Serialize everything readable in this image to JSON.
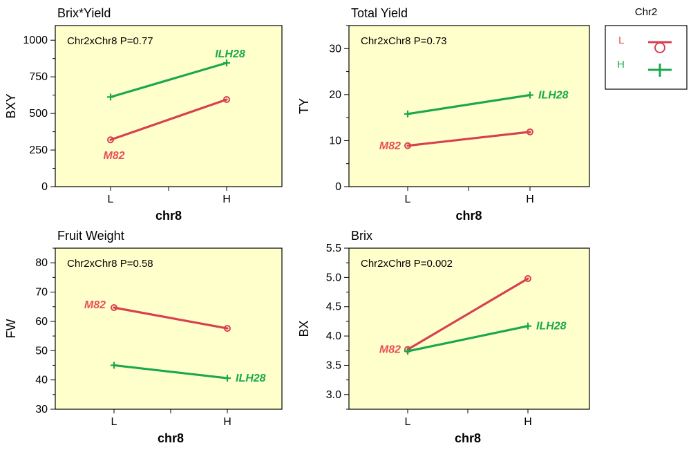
{
  "chart_data": [
    {
      "type": "line",
      "title": "Brix*Yield",
      "ylabel": "BXY",
      "xlabel": "chr8",
      "categories": [
        "L",
        "H"
      ],
      "ylim": [
        0,
        1100
      ],
      "yticks": [
        0,
        250,
        500,
        750,
        1000
      ],
      "annotation": "Chr2xChr8 P=0.77",
      "series": [
        {
          "name": "L",
          "values": [
            320,
            595
          ],
          "label": "M82",
          "label_at": 0
        },
        {
          "name": "H",
          "values": [
            612,
            845
          ],
          "label": "ILH28",
          "label_at": 1
        }
      ]
    },
    {
      "type": "line",
      "title": "Total Yield",
      "ylabel": "TY",
      "xlabel": "chr8",
      "categories": [
        "L",
        "H"
      ],
      "ylim": [
        0,
        35
      ],
      "yticks": [
        0,
        10,
        20,
        30
      ],
      "annotation": "Chr2xChr8 P=0.73",
      "series": [
        {
          "name": "L",
          "values": [
            8.9,
            11.9
          ],
          "label": "M82",
          "label_at": 0
        },
        {
          "name": "H",
          "values": [
            15.8,
            19.9
          ],
          "label": "ILH28",
          "label_at": 1
        }
      ]
    },
    {
      "type": "line",
      "title": "Fruit Weight",
      "ylabel": "FW",
      "xlabel": "chr8",
      "categories": [
        "L",
        "H"
      ],
      "ylim": [
        30,
        85
      ],
      "yticks": [
        30,
        40,
        50,
        60,
        70,
        80
      ],
      "annotation": "Chr2xChr8 P=0.58",
      "series": [
        {
          "name": "L",
          "values": [
            64.7,
            57.6
          ],
          "label": "M82",
          "label_at": 0
        },
        {
          "name": "H",
          "values": [
            45.0,
            40.6
          ],
          "label": "ILH28",
          "label_at": 1
        }
      ]
    },
    {
      "type": "line",
      "title": "Brix",
      "ylabel": "BX",
      "xlabel": "chr8",
      "categories": [
        "L",
        "H"
      ],
      "ylim": [
        2.75,
        5.5
      ],
      "yticks": [
        3.0,
        3.5,
        4.0,
        4.5,
        5.0,
        5.5
      ],
      "annotation": "Chr2xChr8 P=0.002",
      "series": [
        {
          "name": "L",
          "values": [
            3.77,
            4.98
          ],
          "label": "M82",
          "label_at": 0
        },
        {
          "name": "H",
          "values": [
            3.74,
            4.17
          ],
          "label": "ILH28",
          "label_at": 1
        }
      ]
    }
  ],
  "legend": {
    "title": "Chr2",
    "items": [
      {
        "key": "L",
        "marker": "circle"
      },
      {
        "key": "H",
        "marker": "plus"
      }
    ]
  },
  "colors": {
    "L": "#d8404f",
    "H": "#19a84e",
    "label_L": "#e8505a",
    "label_H": "#19a84e",
    "panel_bg": "#ffffcc",
    "frame": "#000000"
  }
}
